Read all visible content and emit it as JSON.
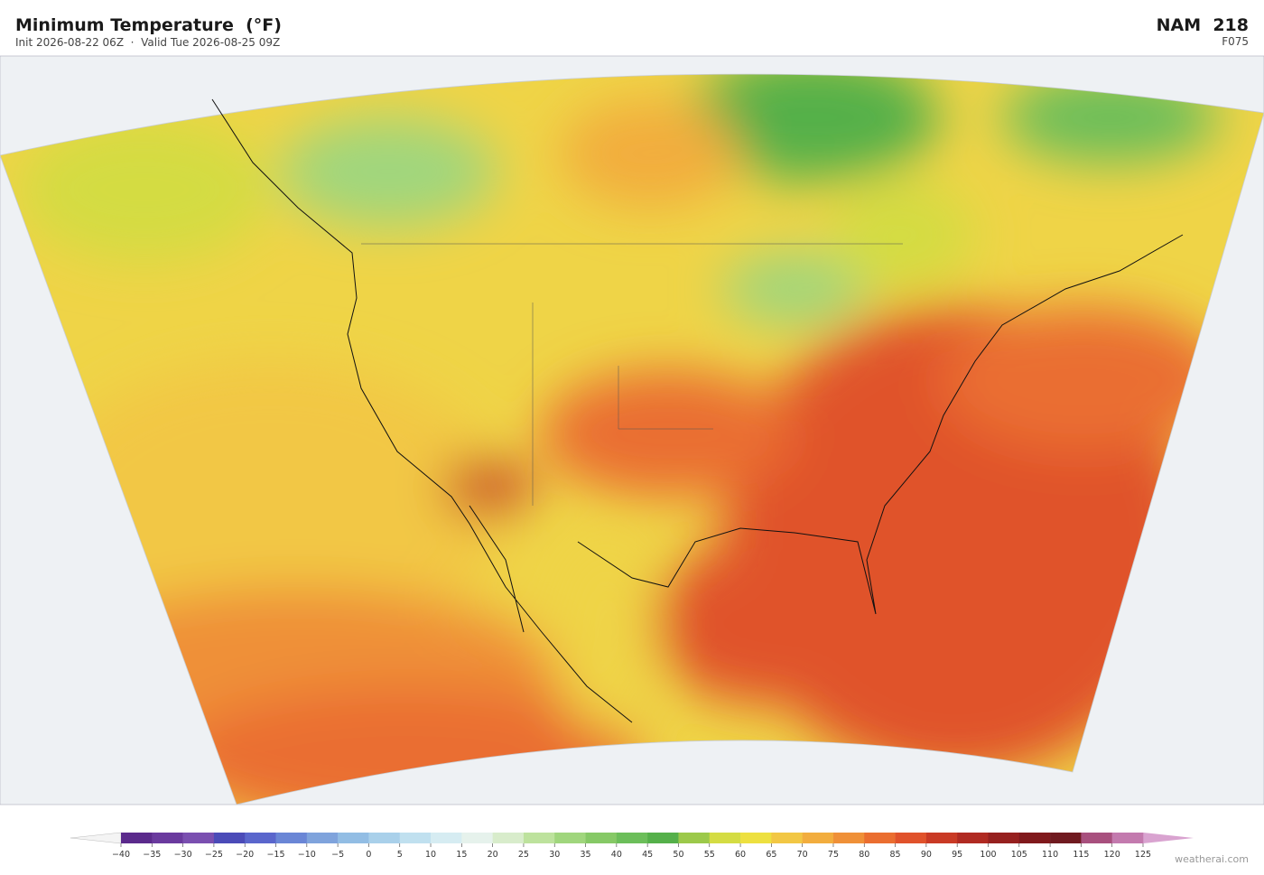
{
  "header": {
    "title": "Minimum Temperature  (°F)",
    "subtitle": "Init 2026-08-22 06Z  ·  Valid Tue 2026-08-25 09Z",
    "model": "NAM  218",
    "forecast_hour": "F075"
  },
  "colorbar": {
    "ticks": [
      {
        "value": -40,
        "label": "−40"
      },
      {
        "value": -35,
        "label": "−35"
      },
      {
        "value": -30,
        "label": "−30"
      },
      {
        "value": -25,
        "label": "−25"
      },
      {
        "value": -20,
        "label": "−20"
      },
      {
        "value": -15,
        "label": "−15"
      },
      {
        "value": -10,
        "label": "−10"
      },
      {
        "value": -5,
        "label": "−5"
      },
      0,
      5,
      10,
      15,
      20,
      25,
      30,
      35,
      40,
      45,
      50,
      55,
      60,
      65,
      70,
      75,
      80,
      85,
      90,
      95,
      100,
      105,
      110,
      115,
      120,
      125
    ],
    "colors": [
      "#5b2a8c",
      "#6a3a9e",
      "#7a4fb0",
      "#4b4bb8",
      "#5a66cc",
      "#6a86d6",
      "#7fa3dc",
      "#92bde4",
      "#a9d0ea",
      "#c0e0ef",
      "#d6ecf2",
      "#e6f2ec",
      "#d8eccb",
      "#bde29d",
      "#a0d67d",
      "#86c966",
      "#6cbe5a",
      "#55b04a",
      "#9cc94a",
      "#d4dc43",
      "#ede040",
      "#f2c744",
      "#f2ad3e",
      "#ef9038",
      "#ea6e30",
      "#e0522b",
      "#c93a25",
      "#b02a22",
      "#96201f",
      "#80191c",
      "#701a20",
      "#a8507e",
      "#c37aae"
    ],
    "under_color": "#f4f4f4",
    "over_color": "#d9a3d0"
  },
  "footer": {
    "credit": "weatherai.com"
  }
}
